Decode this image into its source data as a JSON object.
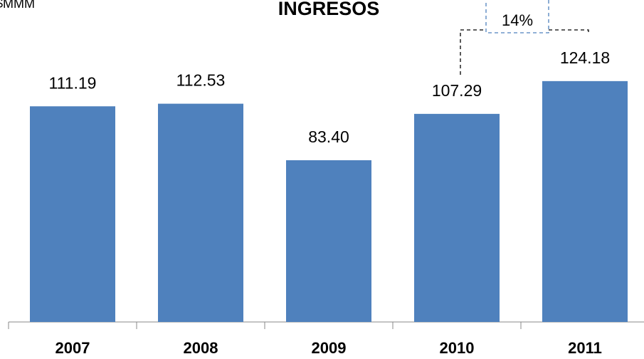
{
  "chart_data": {
    "type": "bar",
    "title": "INGRESOS",
    "unit_label": "$MMM",
    "categories": [
      "2007",
      "2008",
      "2009",
      "2010",
      "2011"
    ],
    "values": [
      111.19,
      112.53,
      83.4,
      107.29,
      124.18
    ],
    "value_labels": [
      "111.19",
      "112.53",
      "83.40",
      "107.29",
      "124.18"
    ],
    "color": "#4f81bd",
    "ylim": [
      0,
      166
    ],
    "annotations": [
      {
        "text": "14%"
      }
    ]
  }
}
